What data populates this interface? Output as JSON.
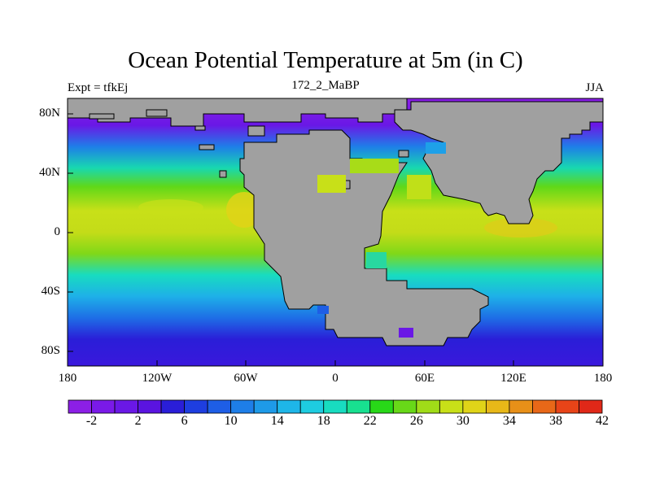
{
  "title": "Ocean Potential Temperature at 5m (in C)",
  "subtitle_left": "Expt = tfkEj",
  "subtitle_center": "172_2_MaBP",
  "subtitle_right": "JJA",
  "lat_labels": [
    "80N",
    "40N",
    "0",
    "40S",
    "80S"
  ],
  "lon_labels": [
    "180",
    "120W",
    "60W",
    "0",
    "60E",
    "120E",
    "180"
  ],
  "colorbar": {
    "labels": [
      "-2",
      "2",
      "6",
      "10",
      "14",
      "18",
      "22",
      "26",
      "30",
      "34",
      "38",
      "42"
    ],
    "colors": [
      "#8c1fe6",
      "#7a1ae8",
      "#6a18e6",
      "#5a14e0",
      "#2a1ed8",
      "#1e3ee0",
      "#1e5ee6",
      "#1e7ee8",
      "#1e9ae8",
      "#1eb6e8",
      "#1ecce0",
      "#18dcc0",
      "#18e090",
      "#28d818",
      "#68d818",
      "#a0dc18",
      "#c8e018",
      "#e0d418",
      "#e8b818",
      "#e89018",
      "#e86818",
      "#e84418",
      "#e02818"
    ]
  },
  "land_color": "#a0a0a0"
}
